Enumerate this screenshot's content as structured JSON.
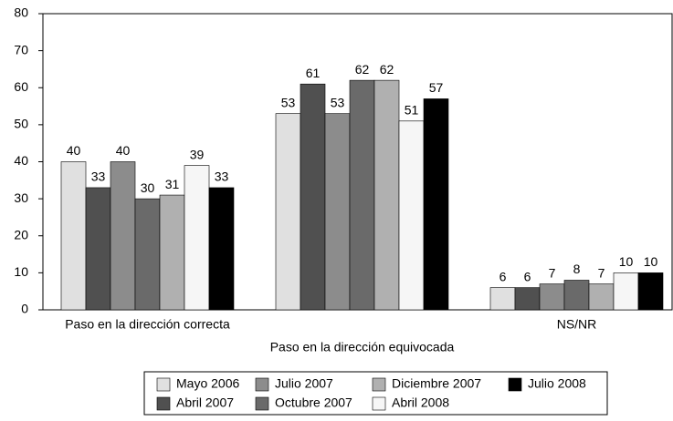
{
  "chart_data": {
    "type": "bar",
    "categories": [
      "Paso en la dirección correcta",
      "Paso en la dirección equivocada",
      "NS/NR"
    ],
    "series": [
      {
        "name": "Mayo 2006",
        "color": "#e0e0e0",
        "values": [
          40,
          53,
          6
        ]
      },
      {
        "name": "Abril 2007",
        "color": "#505050",
        "values": [
          33,
          61,
          6
        ]
      },
      {
        "name": "Julio 2007",
        "color": "#8c8c8c",
        "values": [
          40,
          53,
          7
        ]
      },
      {
        "name": "Octubre 2007",
        "color": "#6a6a6a",
        "values": [
          30,
          62,
          8
        ]
      },
      {
        "name": "Diciembre 2007",
        "color": "#b0b0b0",
        "values": [
          31,
          62,
          7
        ]
      },
      {
        "name": "Abril 2008",
        "color": "#f6f6f6",
        "values": [
          39,
          51,
          10
        ]
      },
      {
        "name": "Julio 2008",
        "color": "#000000",
        "values": [
          33,
          57,
          10
        ]
      }
    ],
    "ylim": [
      0,
      80
    ],
    "yticks": [
      0,
      10,
      20,
      30,
      40,
      50,
      60,
      70,
      80
    ],
    "grid": false,
    "legend": "bottom"
  }
}
